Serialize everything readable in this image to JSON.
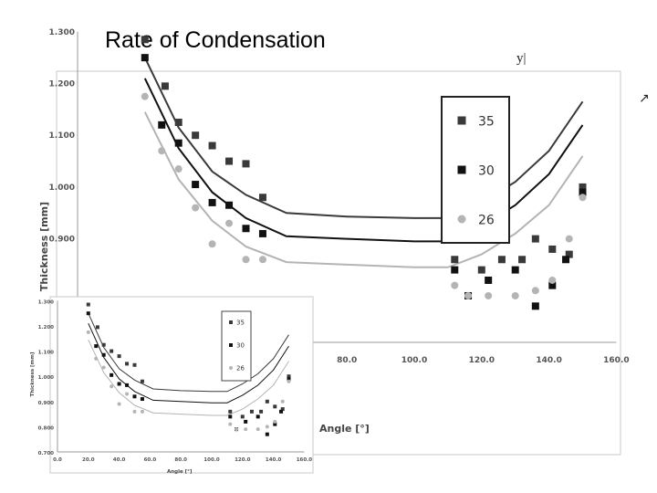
{
  "slide": {
    "title": "Rate of Condensation",
    "corner_text": "y|",
    "corner_arrow": "↗"
  },
  "colors": {
    "s35": "#3a3a3a",
    "s30": "#111111",
    "s26": "#b4b4b4",
    "axis": "#999999"
  },
  "chart_data": [
    {
      "type": "scatter",
      "title": "",
      "xlabel": "Angle [°]",
      "ylabel": "Thickness [mm]",
      "xlim": [
        0,
        160
      ],
      "ylim": [
        0.7,
        1.3
      ],
      "x_ticks": [
        "80.0",
        "100.0",
        "120.0",
        "140.0",
        "160.0"
      ],
      "x_tick_values": [
        80,
        100,
        120,
        140,
        160
      ],
      "y_ticks": [
        "0.900",
        "1.000",
        "1.100",
        "1.200",
        "1.300"
      ],
      "y_tick_values": [
        0.9,
        1.0,
        1.1,
        1.2,
        1.3
      ],
      "legend_position": "top-right",
      "series": [
        {
          "name": "35",
          "marker": "square",
          "points": [
            [
              20,
              1.285
            ],
            [
              26,
              1.195
            ],
            [
              30,
              1.125
            ],
            [
              35,
              1.1
            ],
            [
              40,
              1.08
            ],
            [
              45,
              1.05
            ],
            [
              50,
              1.045
            ],
            [
              55,
              0.98
            ],
            [
              112,
              0.86
            ],
            [
              120,
              0.84
            ],
            [
              126,
              0.86
            ],
            [
              132,
              0.86
            ],
            [
              136,
              0.9
            ],
            [
              141,
              0.88
            ],
            [
              146,
              0.87
            ],
            [
              150,
              1.0
            ]
          ],
          "fit": [
            [
              20,
              1.25
            ],
            [
              30,
              1.115
            ],
            [
              40,
              1.03
            ],
            [
              50,
              0.985
            ],
            [
              62,
              0.95
            ],
            [
              80,
              0.943
            ],
            [
              100,
              0.94
            ],
            [
              110,
              0.94
            ],
            [
              120,
              0.97
            ],
            [
              130,
              1.01
            ],
            [
              140,
              1.07
            ],
            [
              150,
              1.165
            ]
          ]
        },
        {
          "name": "30",
          "marker": "square",
          "points": [
            [
              20,
              1.25
            ],
            [
              25,
              1.12
            ],
            [
              30,
              1.085
            ],
            [
              35,
              1.005
            ],
            [
              40,
              0.97
            ],
            [
              45,
              0.965
            ],
            [
              50,
              0.92
            ],
            [
              55,
              0.91
            ],
            [
              112,
              0.84
            ],
            [
              116,
              0.79
            ],
            [
              122,
              0.82
            ],
            [
              130,
              0.84
            ],
            [
              136,
              0.77
            ],
            [
              141,
              0.81
            ],
            [
              145,
              0.86
            ],
            [
              150,
              0.99
            ]
          ],
          "fit": [
            [
              20,
              1.21
            ],
            [
              30,
              1.075
            ],
            [
              40,
              0.99
            ],
            [
              50,
              0.94
            ],
            [
              62,
              0.905
            ],
            [
              80,
              0.9
            ],
            [
              100,
              0.895
            ],
            [
              110,
              0.895
            ],
            [
              120,
              0.925
            ],
            [
              130,
              0.965
            ],
            [
              140,
              1.025
            ],
            [
              150,
              1.12
            ]
          ]
        },
        {
          "name": "26",
          "marker": "circle",
          "points": [
            [
              20,
              1.175
            ],
            [
              25,
              1.07
            ],
            [
              30,
              1.035
            ],
            [
              35,
              0.96
            ],
            [
              40,
              0.89
            ],
            [
              45,
              0.93
            ],
            [
              50,
              0.86
            ],
            [
              55,
              0.86
            ],
            [
              112,
              0.81
            ],
            [
              116,
              0.79
            ],
            [
              122,
              0.79
            ],
            [
              130,
              0.79
            ],
            [
              136,
              0.8
            ],
            [
              141,
              0.82
            ],
            [
              146,
              0.9
            ],
            [
              150,
              0.98
            ]
          ],
          "fit": [
            [
              20,
              1.145
            ],
            [
              30,
              1.015
            ],
            [
              40,
              0.935
            ],
            [
              50,
              0.885
            ],
            [
              62,
              0.855
            ],
            [
              80,
              0.85
            ],
            [
              100,
              0.845
            ],
            [
              110,
              0.845
            ],
            [
              120,
              0.87
            ],
            [
              130,
              0.91
            ],
            [
              140,
              0.965
            ],
            [
              150,
              1.06
            ]
          ]
        }
      ]
    },
    {
      "type": "scatter",
      "title": "",
      "xlabel": "Angle [°]",
      "ylabel": "Thickness [mm]",
      "xlim": [
        0,
        160
      ],
      "ylim": [
        0.7,
        1.3
      ],
      "x_ticks": [
        "0.0",
        "20.0",
        "40.0",
        "60.0",
        "80.0",
        "100.0",
        "120.0",
        "140.0",
        "160.0"
      ],
      "x_tick_values": [
        0,
        20,
        40,
        60,
        80,
        100,
        120,
        140,
        160
      ],
      "y_ticks": [
        "0.700",
        "0.800",
        "0.900",
        "1.000",
        "1.100",
        "1.200",
        "1.300"
      ],
      "y_tick_values": [
        0.7,
        0.8,
        0.9,
        1.0,
        1.1,
        1.2,
        1.3
      ],
      "legend_position": "top-right",
      "series": [
        {
          "name": "35",
          "marker": "square",
          "points": [
            [
              20,
              1.285
            ],
            [
              26,
              1.195
            ],
            [
              30,
              1.125
            ],
            [
              35,
              1.1
            ],
            [
              40,
              1.08
            ],
            [
              45,
              1.05
            ],
            [
              50,
              1.045
            ],
            [
              55,
              0.98
            ],
            [
              112,
              0.86
            ],
            [
              120,
              0.84
            ],
            [
              126,
              0.86
            ],
            [
              132,
              0.86
            ],
            [
              136,
              0.9
            ],
            [
              141,
              0.88
            ],
            [
              146,
              0.87
            ],
            [
              150,
              1.0
            ]
          ],
          "fit": [
            [
              20,
              1.25
            ],
            [
              30,
              1.115
            ],
            [
              40,
              1.03
            ],
            [
              50,
              0.985
            ],
            [
              62,
              0.95
            ],
            [
              80,
              0.943
            ],
            [
              100,
              0.94
            ],
            [
              110,
              0.94
            ],
            [
              120,
              0.97
            ],
            [
              130,
              1.01
            ],
            [
              140,
              1.07
            ],
            [
              150,
              1.165
            ]
          ]
        },
        {
          "name": "30",
          "marker": "square",
          "points": [
            [
              20,
              1.25
            ],
            [
              25,
              1.12
            ],
            [
              30,
              1.085
            ],
            [
              35,
              1.005
            ],
            [
              40,
              0.97
            ],
            [
              45,
              0.965
            ],
            [
              50,
              0.92
            ],
            [
              55,
              0.91
            ],
            [
              112,
              0.84
            ],
            [
              116,
              0.79
            ],
            [
              122,
              0.82
            ],
            [
              130,
              0.84
            ],
            [
              136,
              0.77
            ],
            [
              141,
              0.81
            ],
            [
              145,
              0.86
            ],
            [
              150,
              0.99
            ]
          ],
          "fit": [
            [
              20,
              1.21
            ],
            [
              30,
              1.075
            ],
            [
              40,
              0.99
            ],
            [
              50,
              0.94
            ],
            [
              62,
              0.905
            ],
            [
              80,
              0.9
            ],
            [
              100,
              0.895
            ],
            [
              110,
              0.895
            ],
            [
              120,
              0.925
            ],
            [
              130,
              0.965
            ],
            [
              140,
              1.025
            ],
            [
              150,
              1.12
            ]
          ]
        },
        {
          "name": "26",
          "marker": "circle",
          "points": [
            [
              20,
              1.175
            ],
            [
              25,
              1.07
            ],
            [
              30,
              1.035
            ],
            [
              35,
              0.96
            ],
            [
              40,
              0.89
            ],
            [
              45,
              0.93
            ],
            [
              50,
              0.86
            ],
            [
              55,
              0.86
            ],
            [
              112,
              0.81
            ],
            [
              116,
              0.79
            ],
            [
              122,
              0.79
            ],
            [
              130,
              0.79
            ],
            [
              136,
              0.8
            ],
            [
              141,
              0.82
            ],
            [
              146,
              0.9
            ],
            [
              150,
              0.98
            ]
          ],
          "fit": [
            [
              20,
              1.145
            ],
            [
              30,
              1.015
            ],
            [
              40,
              0.935
            ],
            [
              50,
              0.885
            ],
            [
              62,
              0.855
            ],
            [
              80,
              0.85
            ],
            [
              100,
              0.845
            ],
            [
              110,
              0.845
            ],
            [
              120,
              0.87
            ],
            [
              130,
              0.91
            ],
            [
              140,
              0.965
            ],
            [
              150,
              1.06
            ]
          ]
        }
      ]
    }
  ]
}
